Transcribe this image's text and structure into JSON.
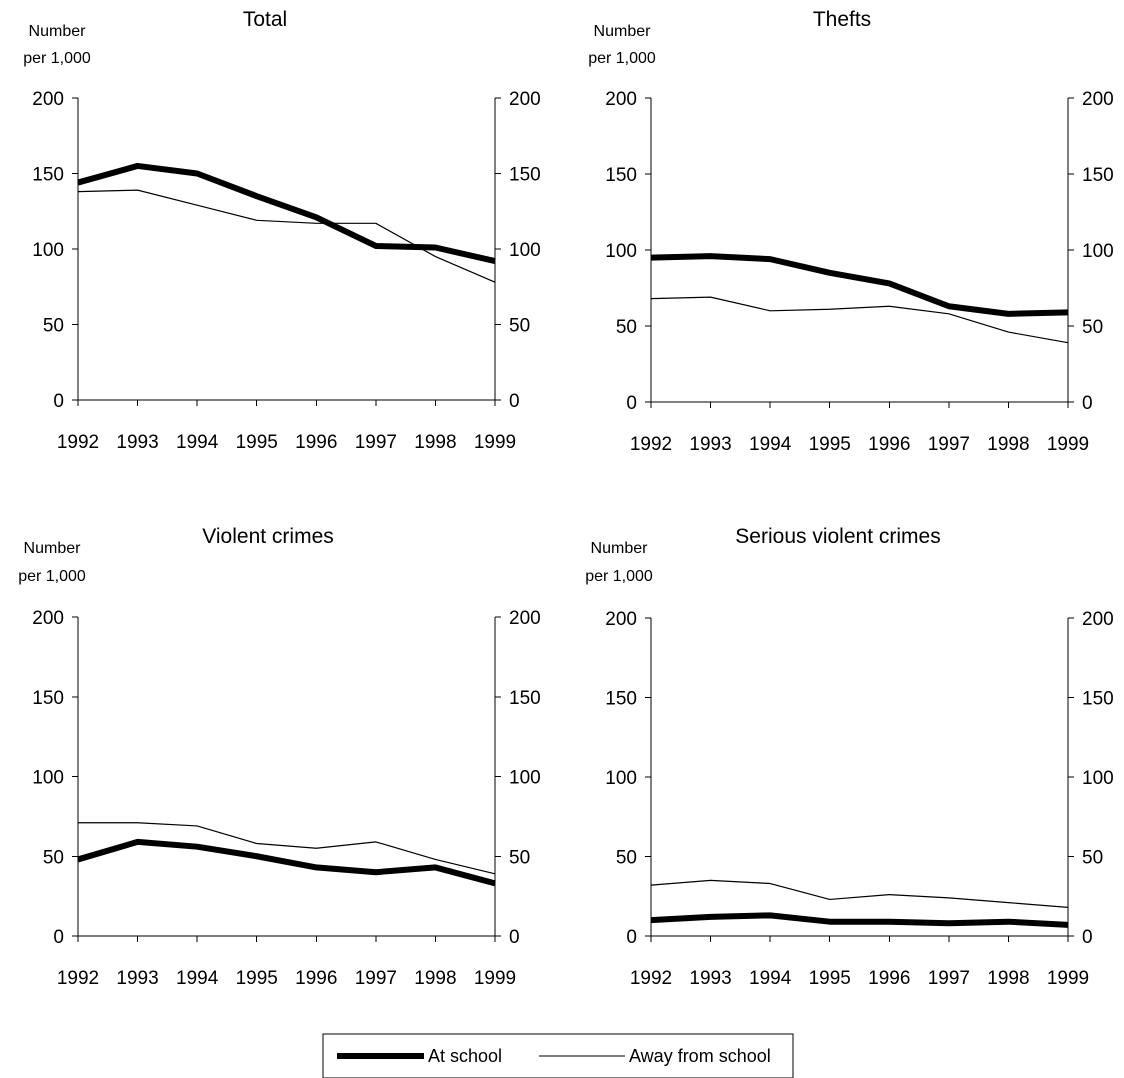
{
  "chart_data": [
    {
      "type": "line",
      "title": "Total",
      "ylabel": "Number per 1,000",
      "ylabel_lines": [
        "Number",
        "per 1,000"
      ],
      "x": [
        "1992",
        "1993",
        "1994",
        "1995",
        "1996",
        "1997",
        "1998",
        "1999"
      ],
      "ylim": [
        0,
        200
      ],
      "yticks": [
        "0",
        "50",
        "100",
        "150",
        "200"
      ],
      "series": [
        {
          "name": "At school",
          "values": [
            144,
            155,
            150,
            135,
            121,
            102,
            101,
            92
          ]
        },
        {
          "name": "Away from school",
          "values": [
            138,
            139,
            129,
            119,
            117,
            117,
            95,
            78
          ]
        }
      ]
    },
    {
      "type": "line",
      "title": "Thefts",
      "ylabel": "Number per 1,000",
      "ylabel_lines": [
        "Number",
        "per 1,000"
      ],
      "x": [
        "1992",
        "1993",
        "1994",
        "1995",
        "1996",
        "1997",
        "1998",
        "1999"
      ],
      "ylim": [
        0,
        200
      ],
      "yticks": [
        "0",
        "50",
        "100",
        "150",
        "200"
      ],
      "series": [
        {
          "name": "At school",
          "values": [
            95,
            96,
            94,
            85,
            78,
            63,
            58,
            59
          ]
        },
        {
          "name": "Away from school",
          "values": [
            68,
            69,
            60,
            61,
            63,
            58,
            46,
            39
          ]
        }
      ]
    },
    {
      "type": "line",
      "title": "Violent crimes",
      "ylabel": "Number per 1,000",
      "ylabel_lines": [
        "Number",
        "per 1,000"
      ],
      "x": [
        "1992",
        "1993",
        "1994",
        "1995",
        "1996",
        "1997",
        "1998",
        "1999"
      ],
      "ylim": [
        0,
        200
      ],
      "yticks": [
        "0",
        "50",
        "100",
        "150",
        "200"
      ],
      "series": [
        {
          "name": "At school",
          "values": [
            48,
            59,
            56,
            50,
            43,
            40,
            43,
            33
          ]
        },
        {
          "name": "Away from school",
          "values": [
            71,
            71,
            69,
            58,
            55,
            59,
            48,
            39
          ]
        }
      ]
    },
    {
      "type": "line",
      "title": "Serious violent crimes",
      "ylabel": "Number per 1,000",
      "ylabel_lines": [
        "Number",
        "per 1,000"
      ],
      "x": [
        "1992",
        "1993",
        "1994",
        "1995",
        "1996",
        "1997",
        "1998",
        "1999"
      ],
      "ylim": [
        0,
        200
      ],
      "yticks": [
        "0",
        "50",
        "100",
        "150",
        "200"
      ],
      "series": [
        {
          "name": "At school",
          "values": [
            10,
            12,
            13,
            9,
            9,
            8,
            9,
            7
          ]
        },
        {
          "name": "Away from school",
          "values": [
            32,
            35,
            33,
            23,
            26,
            24,
            21,
            18
          ]
        }
      ]
    }
  ],
  "legend": {
    "placement": "bottom-center",
    "items": [
      {
        "label": "At school",
        "style": "thick"
      },
      {
        "label": "Away from school",
        "style": "thin"
      }
    ]
  },
  "colors": {
    "line": "#000000",
    "background": "#ffffff"
  }
}
